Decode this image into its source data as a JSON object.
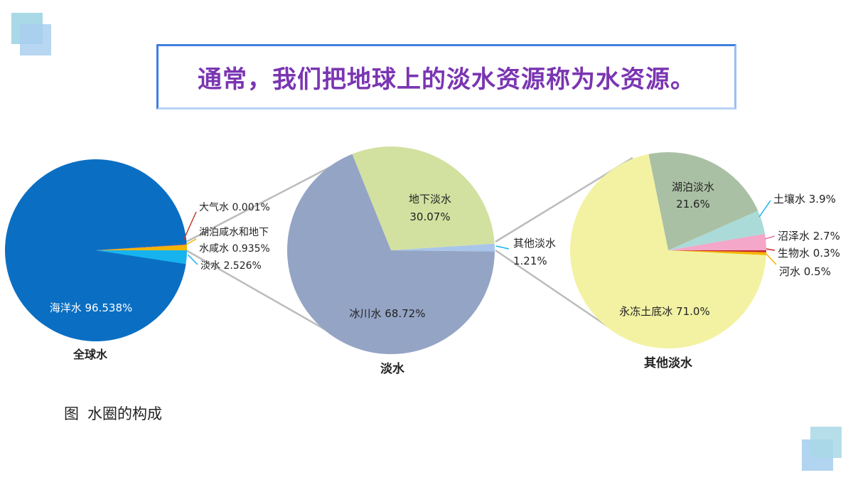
{
  "title": "通常，我们把地球上的淡水资源称为水资源。",
  "caption": {
    "label": "图",
    "text": "水圈的构成"
  },
  "chart_data": [
    {
      "type": "pie",
      "title": "全球水",
      "slices": [
        {
          "name": "海洋水",
          "value": 96.538,
          "label": "96.538%",
          "color": "#0a6fc3"
        },
        {
          "name": "大气水",
          "value": 0.001,
          "label": "0.001%",
          "color": "#d9534f"
        },
        {
          "name": "湖泊咸水和地下水咸水",
          "value": 0.935,
          "label": "0.935%",
          "color": "#f2b500"
        },
        {
          "name": "淡水",
          "value": 2.526,
          "label": "2.526%",
          "color": "#16b3ef"
        }
      ],
      "label_lines": [
        {
          "name": "大气水",
          "value": "0.001%"
        },
        {
          "name": "湖泊咸水和地下",
          "name2": "水咸水",
          "value": "0.935%"
        },
        {
          "name": "淡水",
          "value": "2.526%"
        }
      ]
    },
    {
      "type": "pie",
      "title": "淡水",
      "slices": [
        {
          "name": "冰川水",
          "value": 68.72,
          "label": "68.72%",
          "color": "#94a4c4"
        },
        {
          "name": "地下淡水",
          "value": 30.07,
          "label": "30.07%",
          "color": "#d2e1a0"
        },
        {
          "name": "其他淡水",
          "value": 1.21,
          "label": "1.21%",
          "color": "#a9c6ea"
        }
      ]
    },
    {
      "type": "pie",
      "title": "其他淡水",
      "slices": [
        {
          "name": "永冻土底冰",
          "value": 71.0,
          "label": "71.0%",
          "color": "#f2f2a2"
        },
        {
          "name": "湖泊淡水",
          "value": 21.6,
          "label": "21.6%",
          "color": "#aac0a4"
        },
        {
          "name": "土壤水",
          "value": 3.9,
          "label": "3.9%",
          "color": "#aadbd8"
        },
        {
          "name": "沼泽水",
          "value": 2.7,
          "label": "2.7%",
          "color": "#f4a7c8"
        },
        {
          "name": "生物水",
          "value": 0.3,
          "label": "0.3%",
          "color": "#c9252c"
        },
        {
          "name": "河水",
          "value": 0.5,
          "label": "0.5%",
          "color": "#f6b400"
        }
      ]
    }
  ]
}
